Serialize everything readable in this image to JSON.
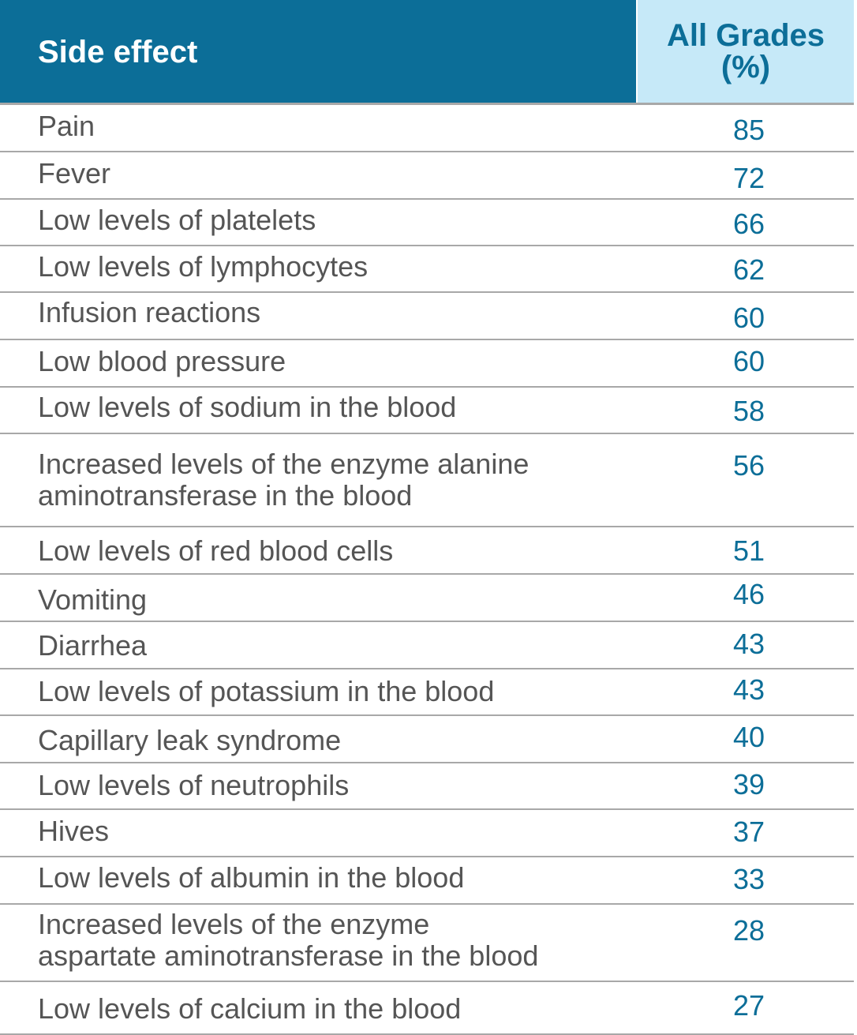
{
  "header": {
    "col1": "Side effect",
    "col2": "All Grades\n(%)"
  },
  "rows": [
    {
      "label": "Pain",
      "value": "85"
    },
    {
      "label": "Fever",
      "value": "72"
    },
    {
      "label": "Low levels of platelets",
      "value": "66"
    },
    {
      "label": "Low levels of lymphocytes",
      "value": "62"
    },
    {
      "label": "Infusion reactions",
      "value": "60"
    },
    {
      "label": "Low blood pressure",
      "value": "60"
    },
    {
      "label": "Low levels of sodium in the blood",
      "value": "58"
    },
    {
      "label": "Increased levels of the enzyme alanine\naminotransferase in the blood",
      "value": "56"
    },
    {
      "label": "Low levels of red blood cells",
      "value": "51"
    },
    {
      "label": "Vomiting",
      "value": "46"
    },
    {
      "label": "Diarrhea",
      "value": "43"
    },
    {
      "label": "Low levels of potassium in the blood",
      "value": "43"
    },
    {
      "label": "Capillary leak syndrome",
      "value": "40"
    },
    {
      "label": "Low levels of neutrophils",
      "value": "39"
    },
    {
      "label": "Hives",
      "value": "37"
    },
    {
      "label": "Low levels of albumin in the blood",
      "value": "33"
    },
    {
      "label": "Increased levels of the enzyme\naspartate aminotransferase in the blood",
      "value": "28"
    },
    {
      "label": "Low levels of calcium in the blood",
      "value": "27"
    }
  ]
}
